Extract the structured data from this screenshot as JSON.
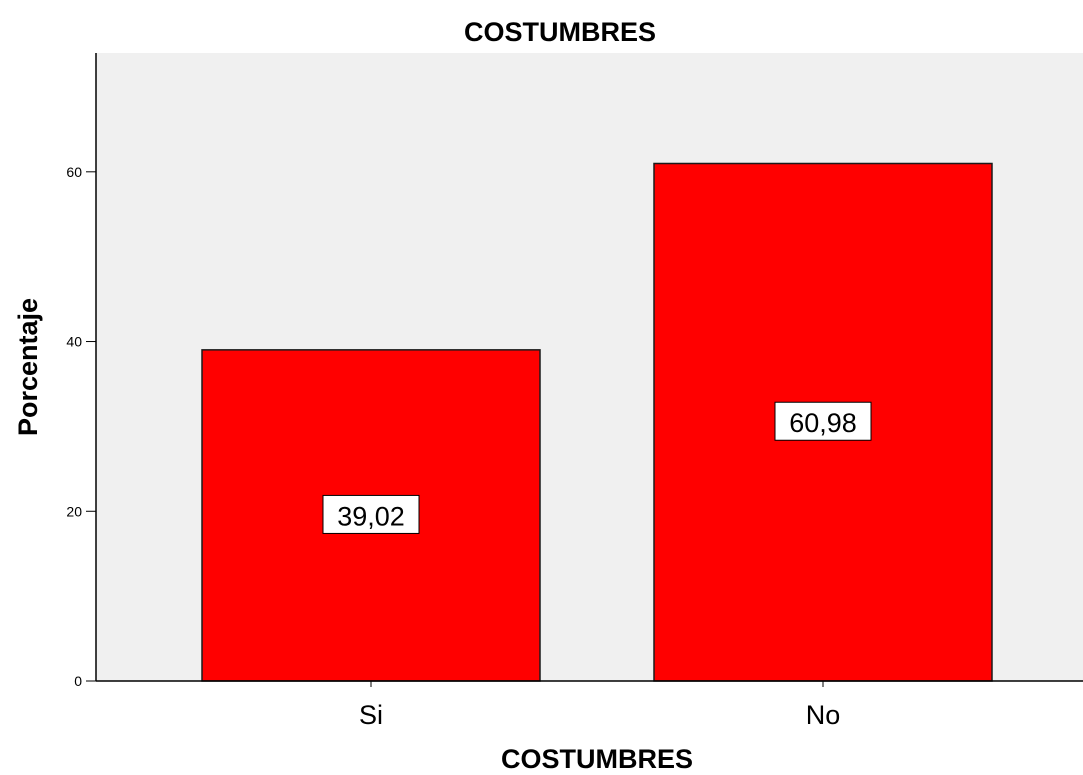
{
  "chart_data": {
    "type": "bar",
    "title": "COSTUMBRES",
    "xlabel": "COSTUMBRES",
    "ylabel": "Porcentaje",
    "categories": [
      "Si",
      "No"
    ],
    "values": [
      39.02,
      60.98
    ],
    "data_labels": [
      "39,02",
      "60,98"
    ],
    "yticks": [
      0,
      20,
      40,
      60
    ],
    "ytick_labels": [
      "0",
      "20",
      "40",
      "60"
    ],
    "ylim": [
      0,
      74
    ],
    "grid": false,
    "legend": "none"
  },
  "colors": {
    "bar_fill": "#ff0000",
    "bar_stroke": "#1a1a1a",
    "plot_background": "#f0f0f0",
    "page_background": "#ffffff"
  }
}
